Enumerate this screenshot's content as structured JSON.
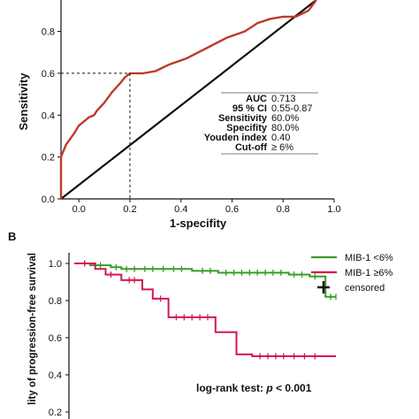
{
  "chart_data": [
    {
      "type": "line",
      "panel_label": "",
      "xlabel": "1-specifity",
      "ylabel": "Sensitivity",
      "xlim": [
        -0.07,
        1.0
      ],
      "ylim": [
        0.0,
        0.95
      ],
      "xticks": [
        "0.0",
        "0.2",
        "0.4",
        "0.6",
        "0.8",
        "1.0"
      ],
      "yticks": [
        "0.0",
        "0.2",
        "0.4",
        "0.6",
        "0.8"
      ],
      "roc_curve": {
        "color": "#c0392b",
        "x": [
          -0.07,
          -0.07,
          -0.05,
          -0.02,
          0.0,
          0.02,
          0.04,
          0.06,
          0.07,
          0.1,
          0.13,
          0.16,
          0.18,
          0.2,
          0.22,
          0.25,
          0.3,
          0.35,
          0.42,
          0.5,
          0.58,
          0.65,
          0.7,
          0.75,
          0.8,
          0.85,
          0.9,
          0.93
        ],
        "y": [
          0.0,
          0.2,
          0.26,
          0.31,
          0.35,
          0.37,
          0.39,
          0.4,
          0.42,
          0.46,
          0.51,
          0.55,
          0.58,
          0.6,
          0.6,
          0.6,
          0.61,
          0.64,
          0.67,
          0.72,
          0.77,
          0.8,
          0.84,
          0.86,
          0.87,
          0.87,
          0.9,
          0.95
        ]
      },
      "reference_line": {
        "color": "#111111",
        "x": [
          -0.07,
          0.93
        ],
        "y": [
          0.0,
          0.95
        ]
      },
      "cutoff_point": {
        "x": 0.2,
        "y": 0.6
      },
      "stats": [
        {
          "label": "AUC",
          "value": "0.713"
        },
        {
          "label": "95 % CI",
          "value": "0.55-0.87"
        },
        {
          "label": "Sensitivity",
          "value": "60.0%"
        },
        {
          "label": "Specifity",
          "value": "80.0%"
        },
        {
          "label": "Youden index",
          "value": "0.40"
        },
        {
          "label": "Cut-off",
          "value": "≥ 6%"
        }
      ]
    },
    {
      "type": "line",
      "panel_label": "B",
      "ylabel": "lity of progression-free survival",
      "ylim": [
        0.2,
        1.05
      ],
      "xlim": [
        0,
        100
      ],
      "yticks": [
        "1.0",
        "0.8",
        "0.6",
        "0.4",
        "0.2"
      ],
      "annotation": "log-rank test: ",
      "annotation_p": "p",
      "annotation_value": " < 0.001",
      "series": [
        {
          "name": "MIB-1 <6%",
          "color": "#3a9a2a",
          "x": [
            0,
            6,
            6,
            14,
            14,
            18,
            18,
            45,
            45,
            55,
            55,
            82,
            82,
            90,
            90,
            96,
            96,
            100
          ],
          "y": [
            1.0,
            1.0,
            0.99,
            0.99,
            0.98,
            0.98,
            0.97,
            0.97,
            0.96,
            0.96,
            0.95,
            0.95,
            0.94,
            0.94,
            0.93,
            0.93,
            0.82,
            0.82
          ],
          "censored_x": [
            4,
            10,
            16,
            20,
            23,
            27,
            30,
            34,
            38,
            41,
            49,
            52,
            58,
            61,
            64,
            67,
            70,
            73,
            76,
            79,
            84,
            87,
            92,
            98,
            100
          ]
        },
        {
          "name": "MIB-1 ≥6%",
          "color": "#d6174d",
          "x": [
            0,
            8,
            8,
            12,
            12,
            18,
            18,
            26,
            26,
            30,
            30,
            36,
            36,
            54,
            54,
            62,
            62,
            68,
            68,
            100
          ],
          "y": [
            1.0,
            1.0,
            0.97,
            0.97,
            0.94,
            0.94,
            0.91,
            0.91,
            0.86,
            0.86,
            0.81,
            0.81,
            0.71,
            0.71,
            0.63,
            0.63,
            0.51,
            0.51,
            0.5,
            0.5
          ],
          "censored_x": [
            4,
            14,
            21,
            23,
            33,
            39,
            42,
            45,
            48,
            51,
            71,
            74,
            77,
            80,
            84,
            88,
            92
          ]
        }
      ],
      "legend": [
        {
          "label": "MIB-1 <6%",
          "symbol": "line",
          "color": "#3a9a2a"
        },
        {
          "label": "MIB-1 ≥6%",
          "symbol": "line",
          "color": "#d6174d"
        },
        {
          "label": "censored",
          "symbol": "plus",
          "color": "#111111"
        }
      ]
    }
  ]
}
